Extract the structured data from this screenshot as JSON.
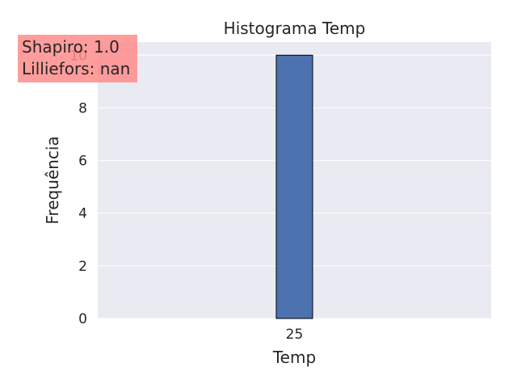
{
  "chart_data": {
    "type": "bar",
    "title": "Histograma Temp",
    "xlabel": "Temp",
    "ylabel": "Frequência",
    "categories": [
      "25"
    ],
    "values": [
      10
    ],
    "ylim": [
      0,
      10.5
    ],
    "yticks": [
      0,
      2,
      4,
      6,
      8,
      10
    ],
    "grid": true,
    "colors": {
      "bar": "#4c72b0",
      "bar_edge": "#000000",
      "plot_bg": "#eaeaf2",
      "grid": "#ffffff",
      "stats_box": "#ff8c8c"
    }
  },
  "stats_box": {
    "line1": "Shapiro: 1.0",
    "line2": "Lilliefors: nan"
  }
}
